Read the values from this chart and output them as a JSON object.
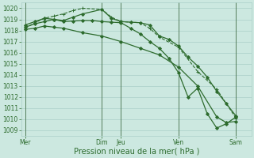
{
  "xlabel": "Pression niveau de la mer( hPa )",
  "background_color": "#cce8e0",
  "grid_color": "#aacfc8",
  "line_color": "#2d6b2d",
  "ylim": [
    1008.5,
    1020.5
  ],
  "yticks": [
    1009,
    1010,
    1011,
    1012,
    1013,
    1014,
    1015,
    1016,
    1017,
    1018,
    1019,
    1020
  ],
  "xtick_labels": [
    "Mer",
    "Dim",
    "Jeu",
    "Ven",
    "Sam"
  ],
  "xtick_positions": [
    0,
    4,
    5,
    8,
    11
  ],
  "xlim": [
    -0.2,
    11.8
  ],
  "series": [
    {
      "x": [
        0,
        0.5,
        1.0,
        1.5,
        2.0,
        2.5,
        3.0,
        4.0,
        4.5,
        5.0,
        5.5,
        6.0,
        6.5,
        7.0,
        7.5,
        8.0,
        8.5,
        9.0,
        9.5,
        10.0,
        10.5,
        11.0
      ],
      "y": [
        1018.3,
        1018.6,
        1018.8,
        1019.0,
        1018.9,
        1019.2,
        1019.5,
        1019.9,
        1019.1,
        1018.8,
        1018.75,
        1018.7,
        1018.5,
        1017.5,
        1017.2,
        1016.6,
        1015.6,
        1014.8,
        1013.8,
        1012.5,
        1011.4,
        1010.3
      ],
      "marker": "D",
      "markersize": 2.0,
      "linewidth": 0.9,
      "style": "solid"
    },
    {
      "x": [
        0,
        0.5,
        1.0,
        1.5,
        2.0,
        2.5,
        3.0,
        4.0,
        4.5,
        5.0,
        5.5,
        6.0,
        6.5,
        7.0,
        8.0,
        9.0,
        10.0,
        11.0
      ],
      "y": [
        1018.2,
        1018.7,
        1019.1,
        1019.3,
        1019.5,
        1019.8,
        1020.0,
        1019.9,
        1019.2,
        1018.8,
        1018.75,
        1018.7,
        1018.2,
        1017.4,
        1016.5,
        1014.3,
        1012.7,
        1010.1
      ],
      "marker": "+",
      "markersize": 3.5,
      "linewidth": 0.8,
      "style": "dashed"
    },
    {
      "x": [
        0,
        0.5,
        1.0,
        1.5,
        2.0,
        2.5,
        3.0,
        3.5,
        4.0,
        4.5,
        5.0,
        5.5,
        6.0,
        6.5,
        7.0,
        7.5,
        8.0,
        8.5,
        9.0,
        9.5,
        10.0,
        10.5,
        11.0
      ],
      "y": [
        1018.5,
        1018.8,
        1019.1,
        1019.0,
        1018.8,
        1018.85,
        1018.9,
        1018.9,
        1018.8,
        1018.75,
        1018.7,
        1018.2,
        1017.7,
        1017.0,
        1016.4,
        1015.5,
        1014.2,
        1012.0,
        1012.8,
        1010.5,
        1009.2,
        1009.6,
        1010.2
      ],
      "marker": "D",
      "markersize": 2.0,
      "linewidth": 0.9,
      "style": "solid"
    },
    {
      "x": [
        0,
        0.5,
        1.0,
        1.5,
        2.0,
        3.0,
        4.0,
        5.0,
        6.0,
        7.0,
        8.0,
        9.0,
        10.0,
        10.5,
        11.0
      ],
      "y": [
        1018.1,
        1018.2,
        1018.4,
        1018.3,
        1018.2,
        1017.8,
        1017.5,
        1017.0,
        1016.4,
        1015.8,
        1014.7,
        1013.0,
        1010.2,
        1009.7,
        1009.8
      ],
      "marker": "D",
      "markersize": 2.0,
      "linewidth": 0.9,
      "style": "solid"
    }
  ],
  "vlines": [
    0,
    4,
    5,
    8,
    11
  ],
  "vline_color": "#2d5a2d",
  "xlabel_fontsize": 7.0,
  "tick_fontsize": 5.5
}
